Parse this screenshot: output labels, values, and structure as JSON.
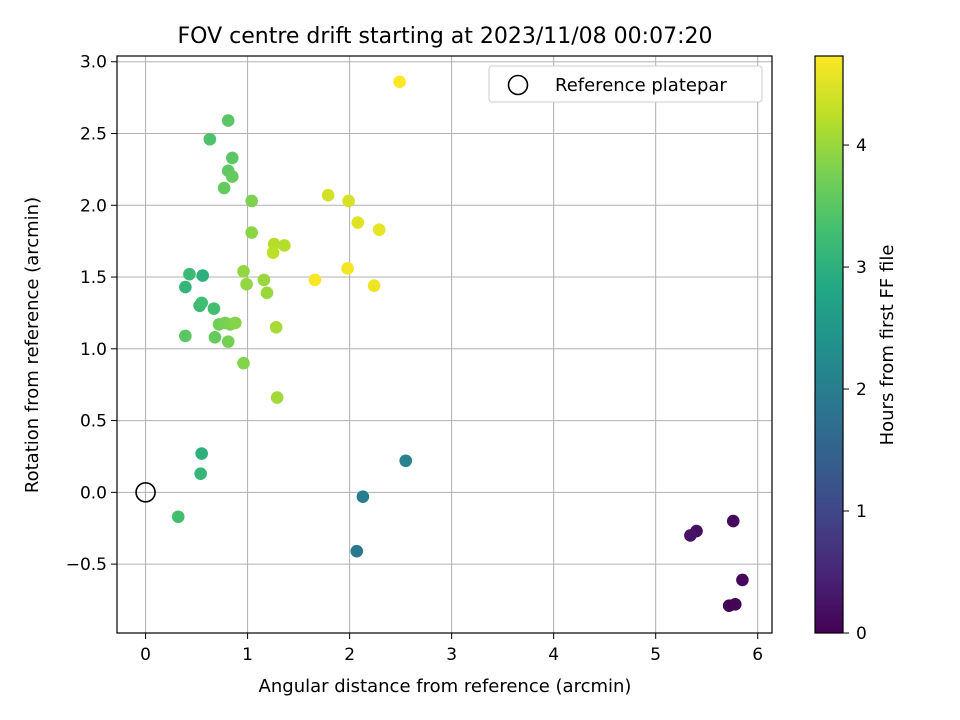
{
  "chart_data": {
    "type": "scatter",
    "title": "FOV centre drift starting at 2023/11/08 00:07:20",
    "xlabel": "Angular distance from reference (arcmin)",
    "ylabel": "Rotation from reference (arcmin)",
    "xlim": [
      -0.28,
      6.14
    ],
    "ylim": [
      -0.98,
      3.04
    ],
    "xticks": [
      0,
      1,
      2,
      3,
      4,
      5,
      6
    ],
    "yticks": [
      -0.5,
      0.0,
      0.5,
      1.0,
      1.5,
      2.0,
      2.5,
      3.0
    ],
    "xtick_labels": [
      "0",
      "1",
      "2",
      "3",
      "4",
      "5",
      "6"
    ],
    "ytick_labels": [
      "−0.5",
      "0.0",
      "0.5",
      "1.0",
      "1.5",
      "2.0",
      "2.5",
      "3.0"
    ],
    "grid": true,
    "legend": {
      "position": "top-right",
      "entries": [
        "Reference platepar"
      ]
    },
    "reference_point": {
      "x": 0.0,
      "y": 0.0
    },
    "colorbar": {
      "label": "Hours from first FF file",
      "colormap": "viridis",
      "range": [
        0,
        4.73
      ],
      "ticks": [
        0,
        1,
        2,
        3,
        4
      ],
      "tick_labels": [
        "0",
        "1",
        "2",
        "3",
        "4"
      ]
    },
    "series": [
      {
        "points": [
          {
            "x": 5.72,
            "y": -0.79,
            "c": 0.02
          },
          {
            "x": 5.78,
            "y": -0.78,
            "c": 0.05
          },
          {
            "x": 5.85,
            "y": -0.61,
            "c": 0.1
          },
          {
            "x": 5.76,
            "y": -0.2,
            "c": 0.15
          },
          {
            "x": 5.4,
            "y": -0.27,
            "c": 0.2
          },
          {
            "x": 5.34,
            "y": -0.3,
            "c": 0.25
          },
          {
            "x": 2.07,
            "y": -0.41,
            "c": 1.9
          },
          {
            "x": 2.13,
            "y": -0.03,
            "c": 2.0
          },
          {
            "x": 2.55,
            "y": 0.22,
            "c": 2.1
          },
          {
            "x": 0.55,
            "y": 0.27,
            "c": 3.0
          },
          {
            "x": 0.54,
            "y": 0.13,
            "c": 3.1
          },
          {
            "x": 0.32,
            "y": -0.17,
            "c": 3.3
          },
          {
            "x": 0.56,
            "y": 1.51,
            "c": 3.0
          },
          {
            "x": 0.39,
            "y": 1.43,
            "c": 3.1
          },
          {
            "x": 0.43,
            "y": 1.52,
            "c": 3.2
          },
          {
            "x": 0.53,
            "y": 1.3,
            "c": 3.2
          },
          {
            "x": 0.55,
            "y": 1.32,
            "c": 3.25
          },
          {
            "x": 0.67,
            "y": 1.28,
            "c": 3.3
          },
          {
            "x": 0.39,
            "y": 1.09,
            "c": 3.5
          },
          {
            "x": 0.68,
            "y": 1.08,
            "c": 3.6
          },
          {
            "x": 0.63,
            "y": 2.46,
            "c": 3.4
          },
          {
            "x": 0.81,
            "y": 2.59,
            "c": 3.5
          },
          {
            "x": 0.85,
            "y": 2.33,
            "c": 3.5
          },
          {
            "x": 0.81,
            "y": 2.24,
            "c": 3.55
          },
          {
            "x": 0.85,
            "y": 2.2,
            "c": 3.6
          },
          {
            "x": 0.77,
            "y": 2.12,
            "c": 3.6
          },
          {
            "x": 0.72,
            "y": 1.17,
            "c": 3.7
          },
          {
            "x": 0.78,
            "y": 1.18,
            "c": 3.75
          },
          {
            "x": 0.83,
            "y": 1.17,
            "c": 3.8
          },
          {
            "x": 0.88,
            "y": 1.18,
            "c": 3.85
          },
          {
            "x": 0.81,
            "y": 1.05,
            "c": 3.75
          },
          {
            "x": 0.96,
            "y": 0.9,
            "c": 3.85
          },
          {
            "x": 1.04,
            "y": 2.03,
            "c": 3.8
          },
          {
            "x": 1.04,
            "y": 1.81,
            "c": 3.9
          },
          {
            "x": 0.96,
            "y": 1.54,
            "c": 3.95
          },
          {
            "x": 0.99,
            "y": 1.45,
            "c": 3.95
          },
          {
            "x": 1.16,
            "y": 1.48,
            "c": 4.0
          },
          {
            "x": 1.19,
            "y": 1.39,
            "c": 4.0
          },
          {
            "x": 1.29,
            "y": 0.66,
            "c": 4.05
          },
          {
            "x": 1.28,
            "y": 1.15,
            "c": 4.1
          },
          {
            "x": 1.26,
            "y": 1.73,
            "c": 4.2
          },
          {
            "x": 1.36,
            "y": 1.72,
            "c": 4.2
          },
          {
            "x": 1.25,
            "y": 1.67,
            "c": 4.25
          },
          {
            "x": 1.79,
            "y": 2.07,
            "c": 4.4
          },
          {
            "x": 1.99,
            "y": 2.03,
            "c": 4.45
          },
          {
            "x": 2.08,
            "y": 1.88,
            "c": 4.5
          },
          {
            "x": 2.29,
            "y": 1.83,
            "c": 4.55
          },
          {
            "x": 2.24,
            "y": 1.44,
            "c": 4.6
          },
          {
            "x": 1.98,
            "y": 1.56,
            "c": 4.65
          },
          {
            "x": 1.66,
            "y": 1.48,
            "c": 4.7
          },
          {
            "x": 2.49,
            "y": 2.86,
            "c": 4.73
          }
        ]
      }
    ]
  }
}
